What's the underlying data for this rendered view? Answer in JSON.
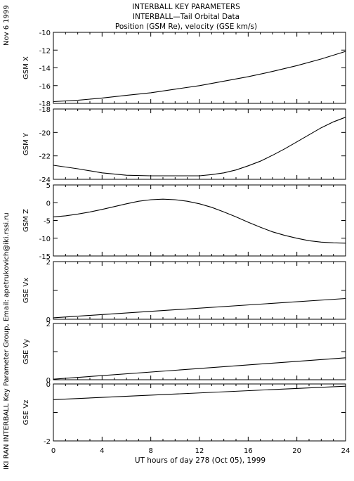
{
  "header": {
    "line1": "INTERBALL KEY PARAMETERS",
    "line2": "INTERBALL—Tail Orbital Data",
    "line3": "Position (GSM Re), velocity (GSE km/s)",
    "date": "Nov  6 1999",
    "side_credit": "IKI RAN INTERBALL Key Parameter Group, Email: apetrukovich@iki.rssi.ru"
  },
  "chart_data": {
    "type": "line",
    "xlabel": "UT hours of day 278 (Oct 05), 1999",
    "xlim": [
      0,
      24
    ],
    "xticks": [
      "0",
      "4",
      "8",
      "12",
      "16",
      "20",
      "24"
    ],
    "panels": [
      {
        "ylabel": "GSM X",
        "ylim": [
          -18,
          -10
        ],
        "yticks": [
          "-10",
          "-12",
          "-14",
          "-16",
          "-18"
        ],
        "x": [
          0,
          2,
          4,
          6,
          8,
          10,
          12,
          14,
          16,
          18,
          20,
          22,
          24
        ],
        "values": [
          -17.8,
          -17.65,
          -17.4,
          -17.1,
          -16.8,
          -16.4,
          -16.0,
          -15.5,
          -15.0,
          -14.4,
          -13.75,
          -13.0,
          -12.15
        ]
      },
      {
        "ylabel": "GSM Y",
        "ylim": [
          -24,
          -18
        ],
        "yticks": [
          "-18",
          "-20",
          "-22",
          "-24"
        ],
        "x": [
          0,
          2,
          4,
          6,
          8,
          10,
          12,
          13,
          14,
          15,
          16,
          17,
          18,
          19,
          20,
          21,
          22,
          23,
          24
        ],
        "values": [
          -22.8,
          -23.1,
          -23.45,
          -23.65,
          -23.7,
          -23.7,
          -23.7,
          -23.6,
          -23.45,
          -23.2,
          -22.85,
          -22.45,
          -21.95,
          -21.4,
          -20.8,
          -20.2,
          -19.6,
          -19.1,
          -18.7
        ]
      },
      {
        "ylabel": "GSM Z",
        "ylim": [
          -15,
          5
        ],
        "yticks": [
          "5",
          "0",
          "-5",
          "-10",
          "-15"
        ],
        "x": [
          0,
          1,
          2,
          3,
          4,
          5,
          6,
          7,
          8,
          9,
          10,
          11,
          12,
          13,
          14,
          15,
          16,
          17,
          18,
          19,
          20,
          21,
          22,
          23,
          24
        ],
        "values": [
          -4.0,
          -3.7,
          -3.2,
          -2.6,
          -1.9,
          -1.1,
          -0.3,
          0.4,
          0.85,
          1.0,
          0.85,
          0.4,
          -0.3,
          -1.3,
          -2.6,
          -4.0,
          -5.5,
          -6.9,
          -8.2,
          -9.2,
          -10.0,
          -10.7,
          -11.1,
          -11.3,
          -11.4
        ]
      },
      {
        "ylabel": "GSE Vx",
        "ylim": [
          0,
          2
        ],
        "yticks": [
          "2",
          "",
          "0"
        ],
        "x": [
          0,
          24
        ],
        "values": [
          0.05,
          0.72
        ]
      },
      {
        "ylabel": "GSE Vy",
        "ylim": [
          0,
          2
        ],
        "yticks": [
          "2",
          "",
          "0"
        ],
        "x": [
          0,
          24
        ],
        "values": [
          0.02,
          0.78
        ]
      },
      {
        "ylabel": "GSE Vz",
        "ylim": [
          -2,
          0
        ],
        "yticks": [
          "0",
          "",
          "-2"
        ],
        "x": [
          0,
          24
        ],
        "values": [
          -0.55,
          -0.08
        ]
      }
    ]
  }
}
